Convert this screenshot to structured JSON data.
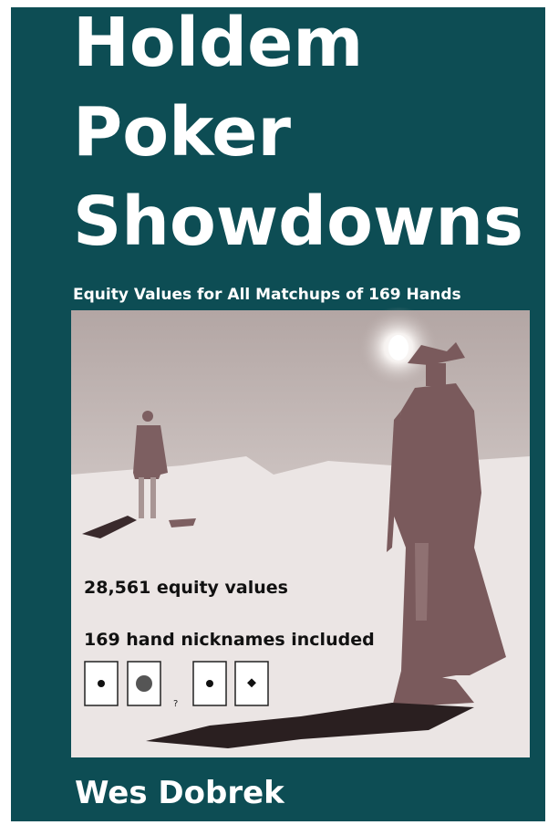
{
  "cover": {
    "title_lines": [
      "Holdem",
      "Poker",
      "Showdowns"
    ],
    "subtitle": "Equity Values for All Matchups of 169 Hands",
    "features": [
      "28,561 equity values",
      "169 hand nicknames included"
    ],
    "card_separator": "?",
    "author": "Wes Dobrek"
  }
}
